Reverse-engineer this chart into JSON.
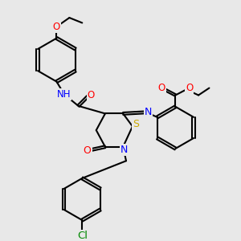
{
  "bg_color": "#e8e8e8",
  "bond_color": "#000000",
  "bond_width": 1.5,
  "atom_colors": {
    "O": "#ff0000",
    "N": "#0000ff",
    "S": "#ccaa00",
    "Cl": "#008800",
    "H": "#4488aa",
    "C": "#000000"
  },
  "font_size": 8.5,
  "fig_bg": "#e8e8e8"
}
